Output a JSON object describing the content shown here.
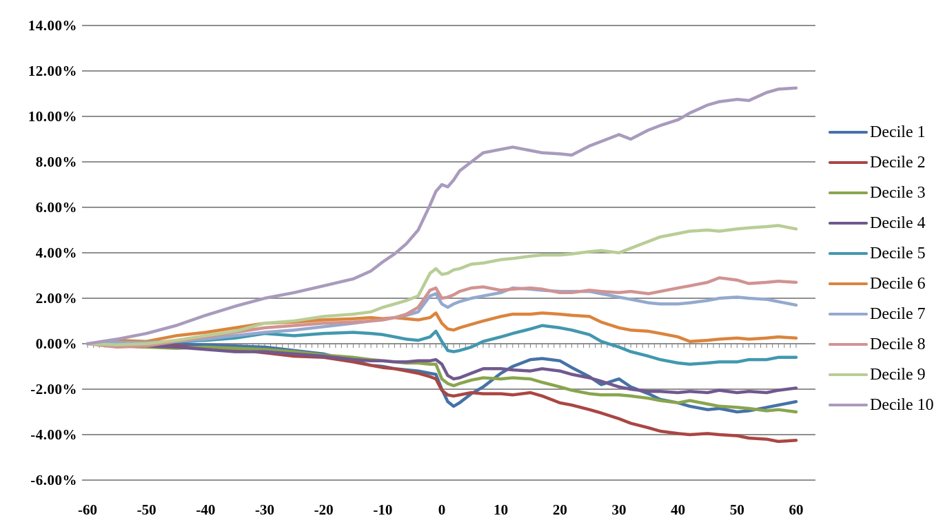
{
  "chart_data": {
    "type": "line",
    "title": "",
    "xlabel": "",
    "ylabel": "",
    "ylim": [
      -6,
      14
    ],
    "xlim": [
      -60,
      60
    ],
    "y_tick_labels": [
      "14.00%",
      "12.00%",
      "10.00%",
      "8.00%",
      "6.00%",
      "4.00%",
      "2.00%",
      "0.00%",
      "-2.00%",
      "-4.00%",
      "-6.00%"
    ],
    "y_tick_values": [
      14,
      12,
      10,
      8,
      6,
      4,
      2,
      0,
      -2,
      -4,
      -6
    ],
    "x_tick_labels": [
      "-60",
      "-50",
      "-40",
      "-30",
      "-20",
      "-10",
      "0",
      "10",
      "20",
      "30",
      "40",
      "50",
      "60"
    ],
    "x_tick_values": [
      -60,
      -50,
      -40,
      -30,
      -20,
      -10,
      0,
      10,
      20,
      30,
      40,
      50,
      60
    ],
    "grid": "horizontal",
    "gridline_color": "#8F8F8F",
    "axis_minor_ticks_at_zero_line": true,
    "legend_position": "right",
    "x": [
      -60,
      -55,
      -50,
      -45,
      -40,
      -35,
      -30,
      -25,
      -20,
      -15,
      -12,
      -10,
      -8,
      -6,
      -4,
      -2,
      -1,
      0,
      1,
      2,
      3,
      5,
      7,
      10,
      12,
      15,
      17,
      20,
      22,
      25,
      27,
      30,
      32,
      35,
      37,
      40,
      42,
      45,
      47,
      50,
      52,
      55,
      57,
      60
    ],
    "series": [
      {
        "name": "Decile 1",
        "color": "#4572A7",
        "values": [
          0,
          -0.05,
          -0.1,
          0,
          -0.05,
          -0.1,
          -0.15,
          -0.3,
          -0.45,
          -0.75,
          -0.95,
          -1,
          -1.1,
          -1.15,
          -1.2,
          -1.3,
          -1.35,
          -2,
          -2.55,
          -2.75,
          -2.6,
          -2.2,
          -1.9,
          -1.3,
          -1,
          -0.7,
          -0.65,
          -0.75,
          -1.05,
          -1.45,
          -1.8,
          -1.55,
          -1.9,
          -2.2,
          -2.45,
          -2.6,
          -2.75,
          -2.9,
          -2.85,
          -3,
          -2.95,
          -2.8,
          -2.7,
          -2.55
        ]
      },
      {
        "name": "Decile 2",
        "color": "#AA4643",
        "values": [
          0,
          -0.1,
          -0.15,
          -0.1,
          -0.2,
          -0.25,
          -0.4,
          -0.55,
          -0.6,
          -0.8,
          -0.95,
          -1.05,
          -1.1,
          -1.2,
          -1.3,
          -1.45,
          -1.55,
          -2.05,
          -2.25,
          -2.3,
          -2.25,
          -2.15,
          -2.2,
          -2.2,
          -2.25,
          -2.15,
          -2.3,
          -2.6,
          -2.7,
          -2.9,
          -3.05,
          -3.3,
          -3.5,
          -3.7,
          -3.85,
          -3.95,
          -4,
          -3.95,
          -4,
          -4.05,
          -4.15,
          -4.2,
          -4.3,
          -4.25
        ]
      },
      {
        "name": "Decile 3",
        "color": "#89A54E",
        "values": [
          0,
          -0.05,
          -0.15,
          -0.2,
          -0.15,
          -0.2,
          -0.25,
          -0.35,
          -0.5,
          -0.6,
          -0.7,
          -0.75,
          -0.8,
          -0.85,
          -0.85,
          -0.9,
          -0.9,
          -1.55,
          -1.75,
          -1.85,
          -1.75,
          -1.6,
          -1.5,
          -1.55,
          -1.5,
          -1.55,
          -1.7,
          -1.9,
          -2.05,
          -2.2,
          -2.25,
          -2.25,
          -2.3,
          -2.4,
          -2.5,
          -2.6,
          -2.5,
          -2.65,
          -2.75,
          -2.8,
          -2.85,
          -2.95,
          -2.9,
          -3
        ]
      },
      {
        "name": "Decile 4",
        "color": "#71588F",
        "values": [
          0,
          -0.05,
          -0.1,
          -0.15,
          -0.25,
          -0.35,
          -0.35,
          -0.45,
          -0.55,
          -0.7,
          -0.75,
          -0.75,
          -0.8,
          -0.8,
          -0.75,
          -0.75,
          -0.7,
          -0.9,
          -1.4,
          -1.55,
          -1.5,
          -1.3,
          -1.1,
          -1.1,
          -1.15,
          -1.2,
          -1.1,
          -1.2,
          -1.35,
          -1.5,
          -1.65,
          -1.9,
          -2,
          -2.1,
          -2.1,
          -2.15,
          -2.1,
          -2.15,
          -2.05,
          -2.15,
          -2.1,
          -2.15,
          -2.05,
          -1.95
        ]
      },
      {
        "name": "Decile 5",
        "color": "#4198AF",
        "values": [
          0,
          0,
          -0.05,
          0.1,
          0.15,
          0.25,
          0.45,
          0.35,
          0.45,
          0.5,
          0.45,
          0.4,
          0.3,
          0.2,
          0.15,
          0.3,
          0.55,
          0.1,
          -0.3,
          -0.35,
          -0.3,
          -0.15,
          0.1,
          0.3,
          0.45,
          0.65,
          0.8,
          0.7,
          0.6,
          0.4,
          0.1,
          -0.15,
          -0.35,
          -0.55,
          -0.7,
          -0.85,
          -0.9,
          -0.85,
          -0.8,
          -0.8,
          -0.7,
          -0.7,
          -0.6,
          -0.6
        ]
      },
      {
        "name": "Decile 6",
        "color": "#DB843D",
        "values": [
          0,
          0.15,
          0.1,
          0.35,
          0.5,
          0.7,
          0.9,
          0.95,
          1.05,
          1.1,
          1.15,
          1.1,
          1.15,
          1.1,
          1.05,
          1.15,
          1.35,
          0.9,
          0.65,
          0.6,
          0.7,
          0.85,
          1,
          1.2,
          1.3,
          1.3,
          1.35,
          1.3,
          1.25,
          1.2,
          0.95,
          0.7,
          0.6,
          0.55,
          0.45,
          0.3,
          0.1,
          0.15,
          0.2,
          0.25,
          0.2,
          0.25,
          0.3,
          0.25
        ]
      },
      {
        "name": "Decile 7",
        "color": "#93A9CF",
        "values": [
          0,
          0.05,
          0.05,
          0.1,
          0.2,
          0.35,
          0.5,
          0.6,
          0.75,
          0.9,
          1,
          1.05,
          1.15,
          1.25,
          1.4,
          2.1,
          2.2,
          1.75,
          1.6,
          1.75,
          1.85,
          2,
          2.1,
          2.25,
          2.45,
          2.4,
          2.35,
          2.3,
          2.3,
          2.3,
          2.2,
          2.05,
          1.95,
          1.8,
          1.75,
          1.75,
          1.8,
          1.9,
          2,
          2.05,
          2,
          1.95,
          1.85,
          1.7
        ]
      },
      {
        "name": "Decile 8",
        "color": "#D19392",
        "values": [
          0,
          -0.15,
          -0.1,
          0.1,
          0.3,
          0.5,
          0.7,
          0.8,
          0.9,
          0.95,
          1,
          1.05,
          1.15,
          1.3,
          1.6,
          2.35,
          2.45,
          2,
          2.05,
          2.15,
          2.3,
          2.45,
          2.5,
          2.35,
          2.4,
          2.45,
          2.4,
          2.25,
          2.25,
          2.35,
          2.3,
          2.25,
          2.3,
          2.2,
          2.3,
          2.45,
          2.55,
          2.7,
          2.9,
          2.8,
          2.65,
          2.7,
          2.75,
          2.7
        ]
      },
      {
        "name": "Decile 9",
        "color": "#B9CD96",
        "values": [
          0,
          -0.05,
          0,
          0.15,
          0.35,
          0.55,
          0.9,
          1,
          1.2,
          1.3,
          1.4,
          1.6,
          1.75,
          1.9,
          2.1,
          3.1,
          3.3,
          3.05,
          3.1,
          3.25,
          3.3,
          3.5,
          3.55,
          3.7,
          3.75,
          3.85,
          3.9,
          3.9,
          3.95,
          4.05,
          4.1,
          4,
          4.2,
          4.5,
          4.7,
          4.85,
          4.95,
          5,
          4.95,
          5.05,
          5.1,
          5.15,
          5.2,
          5.05
        ]
      },
      {
        "name": "Decile 10",
        "color": "#A99BBD",
        "values": [
          0,
          0.2,
          0.45,
          0.8,
          1.25,
          1.65,
          2,
          2.25,
          2.55,
          2.85,
          3.2,
          3.6,
          3.95,
          4.4,
          5,
          6.1,
          6.7,
          7,
          6.9,
          7.2,
          7.6,
          8,
          8.4,
          8.55,
          8.65,
          8.5,
          8.4,
          8.35,
          8.3,
          8.7,
          8.9,
          9.2,
          9,
          9.4,
          9.6,
          9.85,
          10.15,
          10.5,
          10.65,
          10.75,
          10.7,
          11.05,
          11.2,
          11.25
        ]
      }
    ]
  }
}
